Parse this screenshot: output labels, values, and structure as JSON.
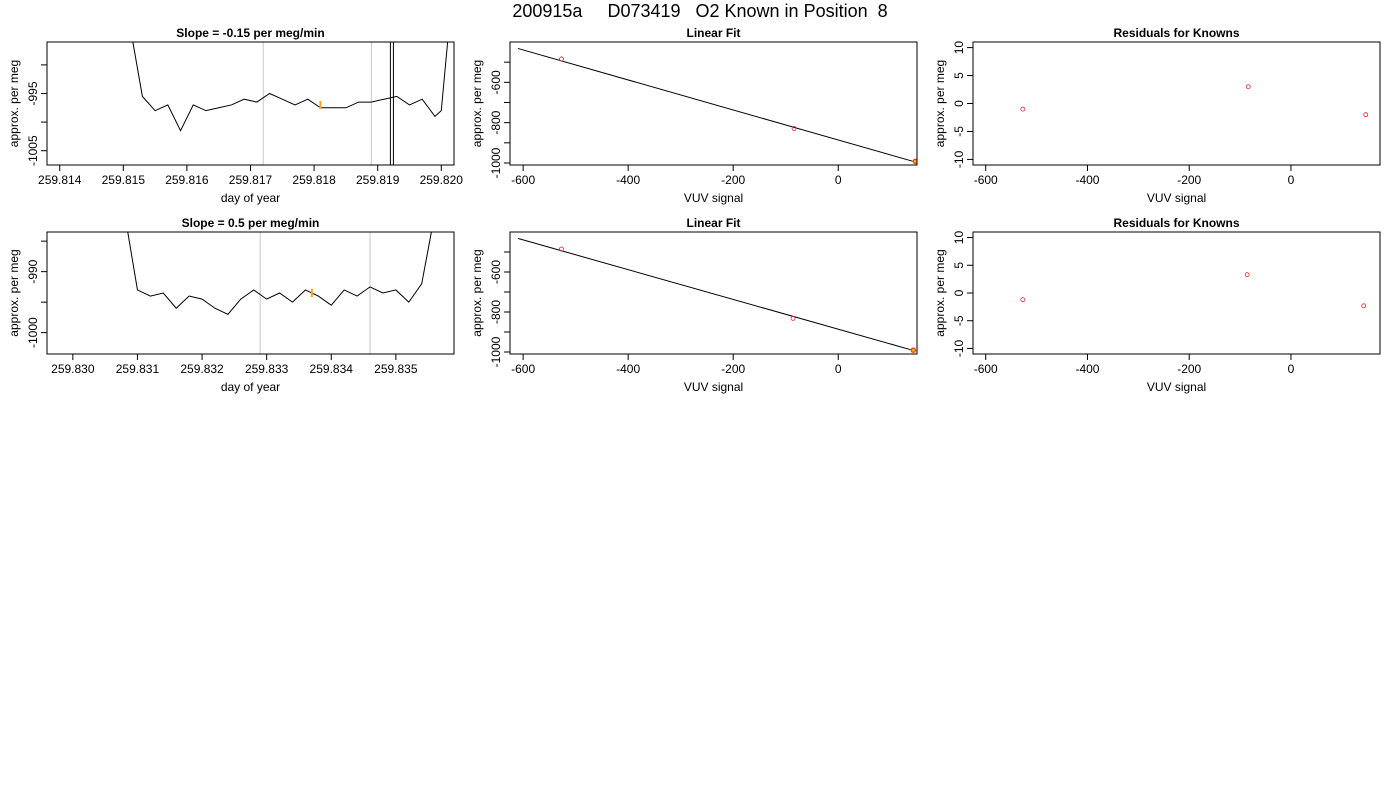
{
  "figure": {
    "title": "200915a     D073419   O2 Known in Position  8"
  },
  "chart_data": [
    {
      "type": "line",
      "title": "Slope =  -0.15  per meg/min",
      "xlabel": "day of year",
      "ylabel": "approx. per meg",
      "xlim": [
        259.8138,
        259.8202
      ],
      "ylim": [
        -1007.5,
        -986
      ],
      "xticks": [
        "259.814",
        "259.815",
        "259.816",
        "259.817",
        "259.818",
        "259.819",
        "259.820"
      ],
      "yticks": [
        "-995",
        "-1005"
      ],
      "ytick_values": [
        -995,
        -1005
      ],
      "extra_ytick_values": [
        -990,
        -1000
      ],
      "vlines": [
        259.8172,
        259.8189
      ],
      "vline_color": "#c8c8c8",
      "spike_x": 259.8192,
      "x": [
        259.81515,
        259.8153,
        259.8155,
        259.8157,
        259.8159,
        259.8161,
        259.8163,
        259.8165,
        259.8167,
        259.8169,
        259.8171,
        259.8173,
        259.8175,
        259.8177,
        259.8179,
        259.8181,
        259.8183,
        259.8185,
        259.8187,
        259.8189,
        259.8191,
        259.8193,
        259.8195,
        259.8197,
        259.8199,
        259.82,
        259.8201
      ],
      "y": [
        -986,
        -995.5,
        -998,
        -997,
        -1001.5,
        -997,
        -998,
        -997.5,
        -997,
        -996,
        -996.5,
        -995,
        -996,
        -997,
        -996,
        -997.5,
        -997.5,
        -997.5,
        -996.5,
        -996.5,
        -996,
        -995.5,
        -997,
        -996,
        -999,
        -998,
        -986
      ],
      "highlight_x": 259.8181,
      "highlight_y": -997,
      "highlight_color": "#f5a623"
    },
    {
      "type": "scatter",
      "title": "Linear Fit",
      "xlabel": "VUV signal",
      "ylabel": "approx. per meg",
      "xlim": [
        -625,
        150
      ],
      "ylim": [
        -1010,
        -400
      ],
      "xticks": [
        "-600",
        "-400",
        "-200",
        "0"
      ],
      "xtick_values": [
        -600,
        -400,
        -200,
        0
      ],
      "yticks": [
        "-600",
        "-800",
        "-1000"
      ],
      "ytick_values": [
        -600,
        -800,
        -1000
      ],
      "extra_ytick_values": [
        -500,
        -700,
        -900
      ],
      "line": {
        "x": [
          -610,
          148
        ],
        "y": [
          -432,
          -996
        ]
      },
      "points": {
        "x": [
          -527,
          -84,
          147
        ],
        "y": [
          -484,
          -829,
          -992
        ]
      },
      "point_color": "#d62728",
      "highlight": {
        "x": 147,
        "y": -992,
        "color": "#f5a623"
      }
    },
    {
      "type": "scatter",
      "title": "Residuals for Knowns",
      "xlabel": "VUV signal",
      "ylabel": "approx. per meg",
      "xlim": [
        -625,
        175
      ],
      "ylim": [
        -11,
        11
      ],
      "xticks": [
        "-600",
        "-400",
        "-200",
        "0"
      ],
      "xtick_values": [
        -600,
        -400,
        -200,
        0
      ],
      "yticks": [
        "10",
        "5",
        "0",
        "-5",
        "-10"
      ],
      "ytick_values": [
        10,
        5,
        0,
        -5,
        -10
      ],
      "points": {
        "x": [
          -527,
          -84,
          147
        ],
        "y": [
          -1.0,
          3.0,
          -2.0
        ]
      },
      "point_color": "#d62728"
    },
    {
      "type": "line",
      "title": "Slope =  0.5  per meg/min",
      "xlabel": "day of year",
      "ylabel": "approx. per meg",
      "xlim": [
        259.8296,
        259.8359
      ],
      "ylim": [
        -1003.5,
        -983.5
      ],
      "xticks": [
        "259.830",
        "259.831",
        "259.832",
        "259.833",
        "259.834",
        "259.835"
      ],
      "yticks": [
        "-990",
        "-1000"
      ],
      "ytick_values": [
        -990,
        -1000
      ],
      "extra_ytick_values": [
        -985,
        -995
      ],
      "vlines": [
        259.8329,
        259.8346
      ],
      "vline_color": "#c8c8c8",
      "x": [
        259.83085,
        259.831,
        259.8312,
        259.8314,
        259.8316,
        259.8318,
        259.832,
        259.8322,
        259.8324,
        259.8326,
        259.8328,
        259.833,
        259.8332,
        259.8334,
        259.8336,
        259.8338,
        259.834,
        259.8342,
        259.8344,
        259.8346,
        259.8348,
        259.835,
        259.8352,
        259.8354,
        259.83555
      ],
      "y": [
        -983.5,
        -993,
        -994,
        -993.5,
        -996,
        -994,
        -994.5,
        -996,
        -997,
        -994.5,
        -993,
        -994.5,
        -993.5,
        -995,
        -993,
        -994,
        -995.5,
        -993,
        -994,
        -992.5,
        -993.5,
        -993,
        -995,
        -992,
        -983.5
      ],
      "highlight_x": 259.8337,
      "highlight_y": -993.5,
      "highlight_color": "#f5a623"
    },
    {
      "type": "scatter",
      "title": "Linear Fit",
      "xlabel": "VUV signal",
      "ylabel": "approx. per meg",
      "xlim": [
        -625,
        150
      ],
      "ylim": [
        -1010,
        -400
      ],
      "xticks": [
        "-600",
        "-400",
        "-200",
        "0"
      ],
      "xtick_values": [
        -600,
        -400,
        -200,
        0
      ],
      "yticks": [
        "-600",
        "-800",
        "-1000"
      ],
      "ytick_values": [
        -600,
        -800,
        -1000
      ],
      "extra_ytick_values": [
        -500,
        -700,
        -900
      ],
      "line": {
        "x": [
          -610,
          148
        ],
        "y": [
          -432,
          -996
        ]
      },
      "points": {
        "x": [
          -527,
          -86,
          143
        ],
        "y": [
          -485,
          -832,
          -991
        ]
      },
      "point_color": "#d62728",
      "highlight": {
        "x": 143,
        "y": -991,
        "color": "#f5a623"
      }
    },
    {
      "type": "scatter",
      "title": "Residuals for Knowns",
      "xlabel": "VUV signal",
      "ylabel": "approx. per meg",
      "xlim": [
        -625,
        175
      ],
      "ylim": [
        -11,
        11
      ],
      "xticks": [
        "-600",
        "-400",
        "-200",
        "0"
      ],
      "xtick_values": [
        -600,
        -400,
        -200,
        0
      ],
      "yticks": [
        "10",
        "5",
        "0",
        "-5",
        "-10"
      ],
      "ytick_values": [
        10,
        5,
        0,
        -5,
        -10
      ],
      "points": {
        "x": [
          -527,
          -86,
          143
        ],
        "y": [
          -1.2,
          3.3,
          -2.3
        ]
      },
      "point_color": "#d62728"
    }
  ]
}
